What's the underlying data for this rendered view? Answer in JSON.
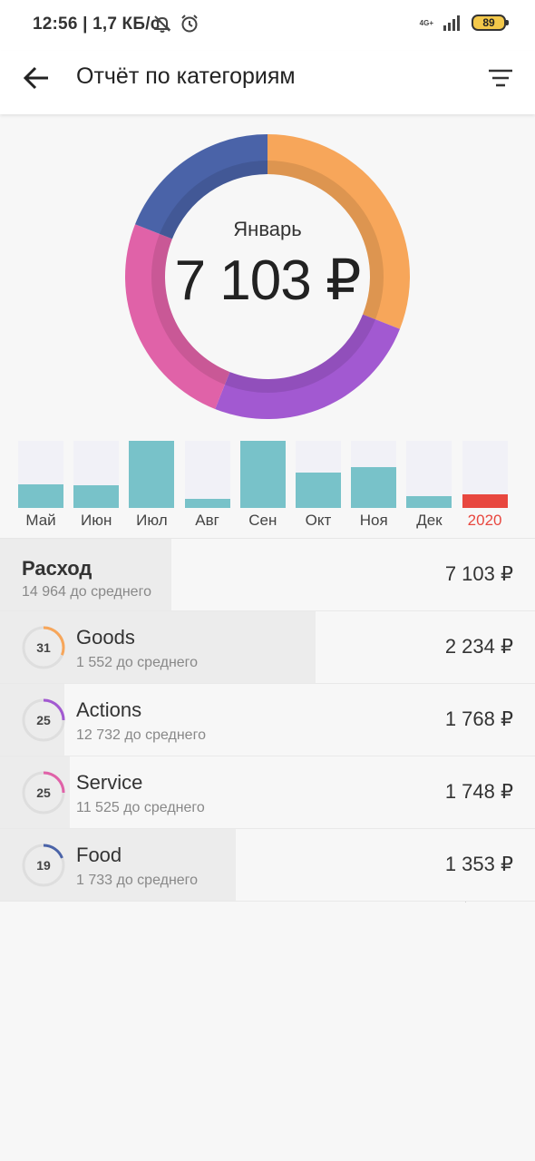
{
  "status_bar": {
    "text": "12:56 | 1,7 КБ/с",
    "network": "4G+",
    "battery": "89",
    "icons": [
      "mute-icon",
      "alarm-icon",
      "signal-icon",
      "battery-icon"
    ]
  },
  "app_bar": {
    "title": "Отчёт по категориям",
    "icons": [
      "back-arrow-icon",
      "filter-icon"
    ]
  },
  "donut": {
    "month": "Январь",
    "total": "7 103 ₽"
  },
  "months": [
    {
      "label": "Май",
      "level": 0.35
    },
    {
      "label": "Июн",
      "level": 0.34
    },
    {
      "label": "Июл",
      "level": 1.0
    },
    {
      "label": "Авг",
      "level": 0.14
    },
    {
      "label": "Сен",
      "level": 1.0
    },
    {
      "label": "Окт",
      "level": 0.53
    },
    {
      "label": "Ноя",
      "level": 0.61
    },
    {
      "label": "Дек",
      "level": 0.17
    },
    {
      "label": "2020",
      "level": 0.2,
      "color": "#e8473f"
    }
  ],
  "summary": {
    "title": "Расход",
    "sub": "14 964 до среднего",
    "amount": "7 103 ₽",
    "level": 0.32
  },
  "categories": [
    {
      "num": "31",
      "name": "Goods",
      "sub": "1 552 до среднего",
      "amount": "2 234 ₽",
      "color": "#f7a65a",
      "share": 0.31,
      "level": 0.59
    },
    {
      "num": "25",
      "name": "Actions",
      "sub": "12 732 до среднего",
      "amount": "1 768 ₽",
      "color": "#a259d1",
      "share": 0.25,
      "level": 0.12
    },
    {
      "num": "25",
      "name": "Service",
      "sub": "11 525 до среднего",
      "amount": "1 748 ₽",
      "color": "#e062a8",
      "share": 0.25,
      "level": 0.13
    },
    {
      "num": "19",
      "name": "Food",
      "sub": "1 733 до среднего",
      "amount": "1 353 ₽",
      "color": "#4a63a8",
      "share": 0.19,
      "level": 0.44
    }
  ]
}
